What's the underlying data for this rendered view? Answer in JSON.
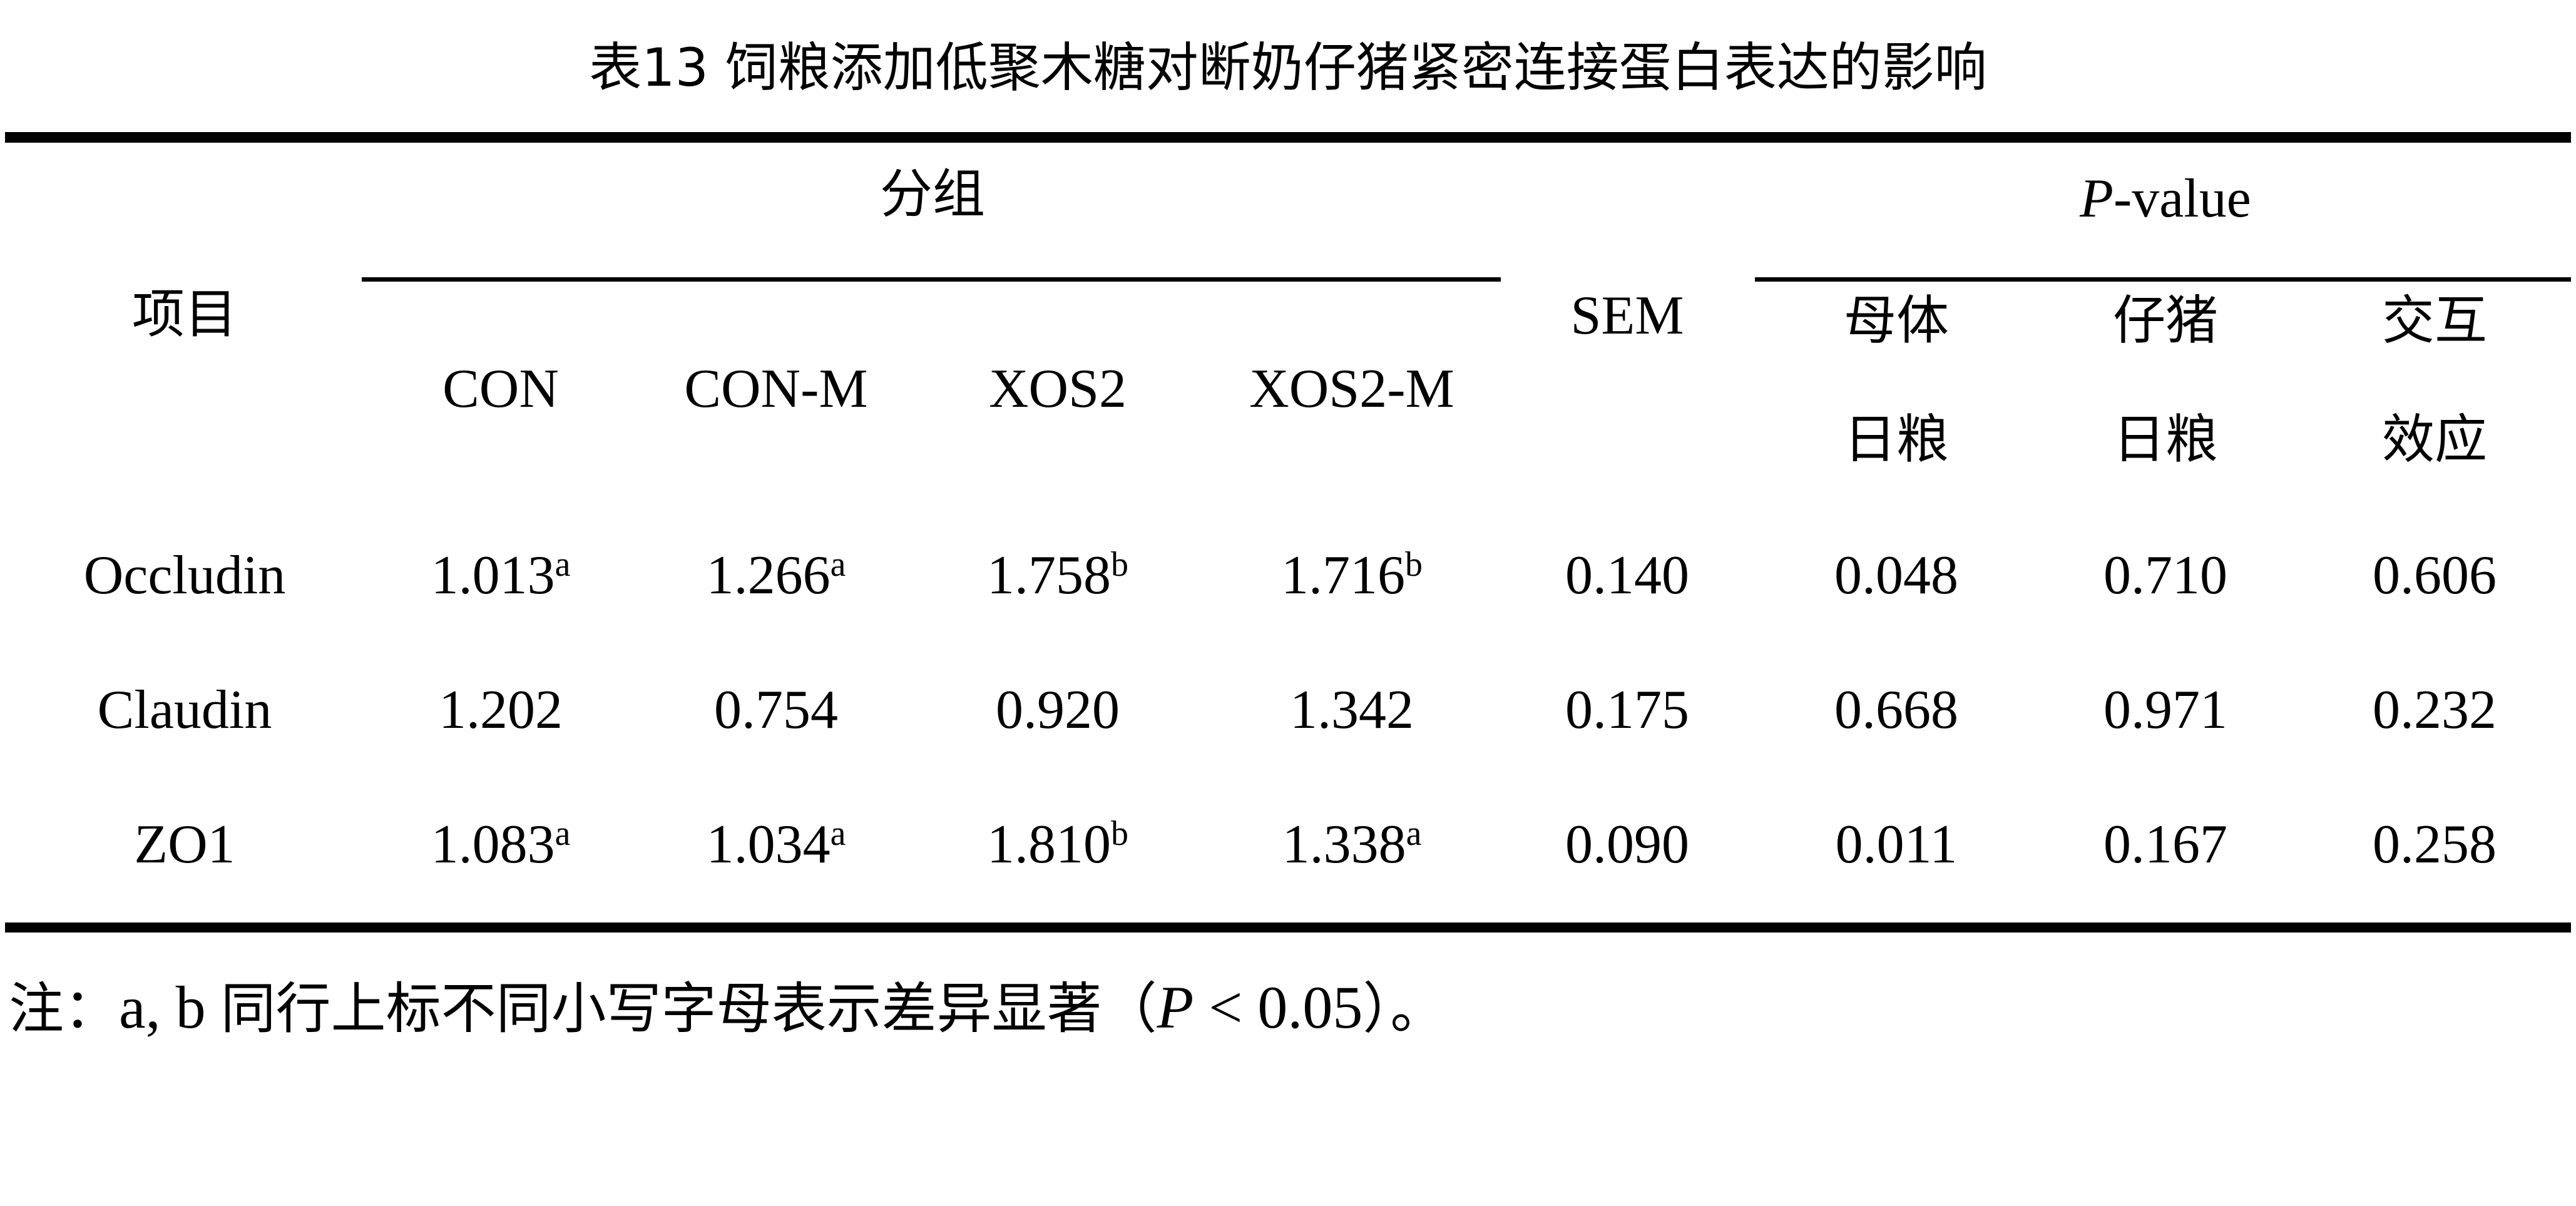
{
  "table": {
    "caption": "表13 饲粮添加低聚木糖对断奶仔猪紧密连接蛋白表达的影响",
    "header": {
      "item": "项目",
      "group": "分组",
      "groups": [
        "CON",
        "CON-M",
        "XOS2",
        "XOS2-M"
      ],
      "sem": "SEM",
      "pvalue_italic": "P",
      "pvalue_suffix": "-value",
      "pcols": [
        {
          "line1": "母体",
          "line2": "日粮"
        },
        {
          "line1": "仔猪",
          "line2": "日粮"
        },
        {
          "line1": "交互",
          "line2": "效应"
        }
      ]
    },
    "rows": [
      {
        "name": "Occludin",
        "values": [
          {
            "v": "1.013",
            "sup": "a"
          },
          {
            "v": "1.266",
            "sup": "a"
          },
          {
            "v": "1.758",
            "sup": "b"
          },
          {
            "v": "1.716",
            "sup": "b"
          }
        ],
        "sem": "0.140",
        "p": [
          "0.048",
          "0.710",
          "0.606"
        ]
      },
      {
        "name": "Claudin",
        "values": [
          {
            "v": "1.202",
            "sup": ""
          },
          {
            "v": "0.754",
            "sup": ""
          },
          {
            "v": "0.920",
            "sup": ""
          },
          {
            "v": "1.342",
            "sup": ""
          }
        ],
        "sem": "0.175",
        "p": [
          "0.668",
          "0.971",
          "0.232"
        ]
      },
      {
        "name": "ZO1",
        "values": [
          {
            "v": "1.083",
            "sup": "a"
          },
          {
            "v": "1.034",
            "sup": "a"
          },
          {
            "v": "1.810",
            "sup": "b"
          },
          {
            "v": "1.338",
            "sup": "a"
          }
        ],
        "sem": "0.090",
        "p": [
          "0.011",
          "0.167",
          "0.258"
        ]
      }
    ]
  },
  "note": {
    "prefix": "注：",
    "letters": "a, b",
    "text": "同行上标不同小写字母表示差异显著（",
    "p_italic": "P",
    "condition": " < 0.05",
    "suffix": "）。"
  }
}
